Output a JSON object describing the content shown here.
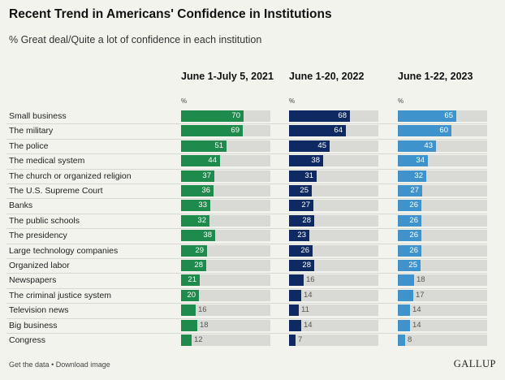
{
  "title": "Recent Trend in Americans' Confidence in Institutions",
  "subtitle": "% Great deal/Quite a lot of confidence in each institution",
  "footer": {
    "get_data": "Get the data",
    "separator": "•",
    "download_image": "Download image",
    "logo": "GALLUP"
  },
  "chart_data": {
    "type": "bar",
    "orientation": "horizontal",
    "title": "Recent Trend in Americans' Confidence in Institutions",
    "subtitle": "% Great deal/Quite a lot of confidence in each institution",
    "unit_label": "%",
    "xlim": [
      0,
      100
    ],
    "categories": [
      "Small business",
      "The military",
      "The police",
      "The medical system",
      "The church or organized religion",
      "The U.S. Supreme Court",
      "Banks",
      "The public schools",
      "The presidency",
      "Large technology companies",
      "Organized labor",
      "Newspapers",
      "The criminal justice system",
      "Television news",
      "Big business",
      "Congress"
    ],
    "series": [
      {
        "name": "June 1-July 5, 2021",
        "color": "#1e8a4c",
        "values": [
          70,
          69,
          51,
          44,
          37,
          36,
          33,
          32,
          38,
          29,
          28,
          21,
          20,
          16,
          18,
          12
        ]
      },
      {
        "name": "June 1-20, 2022",
        "color": "#0f2a63",
        "values": [
          68,
          64,
          45,
          38,
          31,
          25,
          27,
          28,
          23,
          26,
          28,
          16,
          14,
          11,
          14,
          7
        ]
      },
      {
        "name": "June 1-22, 2023",
        "color": "#3f93cc",
        "values": [
          65,
          60,
          43,
          34,
          32,
          27,
          26,
          26,
          26,
          26,
          25,
          18,
          17,
          14,
          14,
          8
        ]
      }
    ]
  }
}
